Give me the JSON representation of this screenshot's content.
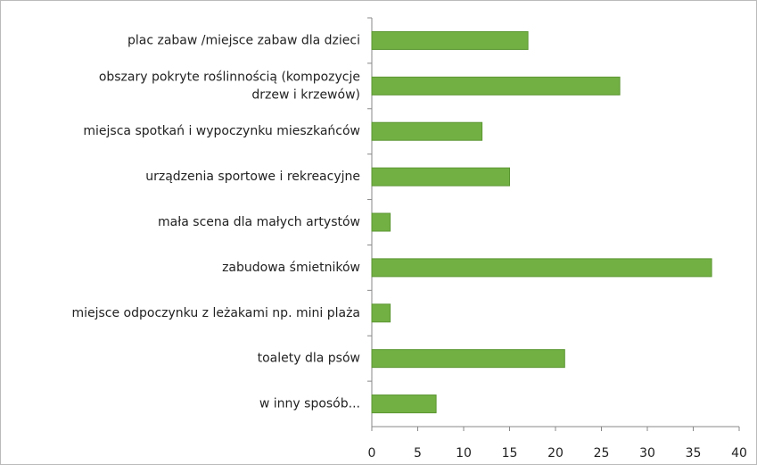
{
  "chart_data": {
    "type": "bar",
    "orientation": "horizontal",
    "categories": [
      "plac zabaw /miejsce zabaw dla dzieci",
      "obszary pokryte roślinnością (kompozycje\ndrzew i krzewów)",
      "miejsca spotkań i wypoczynku mieszkańców",
      "urządzenia sportowe i rekreacyjne",
      "mała scena dla małych artystów",
      "zabudowa śmietników",
      "miejsce odpoczynku z leżakami np. mini plaża",
      "toalety dla psów",
      "w inny sposób..."
    ],
    "values": [
      17,
      27,
      12,
      15,
      2,
      37,
      2,
      21,
      7
    ],
    "color": "#72b043",
    "xlim": [
      0,
      40
    ],
    "xticks": [
      0,
      5,
      10,
      15,
      20,
      25,
      30,
      35,
      40
    ],
    "grid": false
  }
}
